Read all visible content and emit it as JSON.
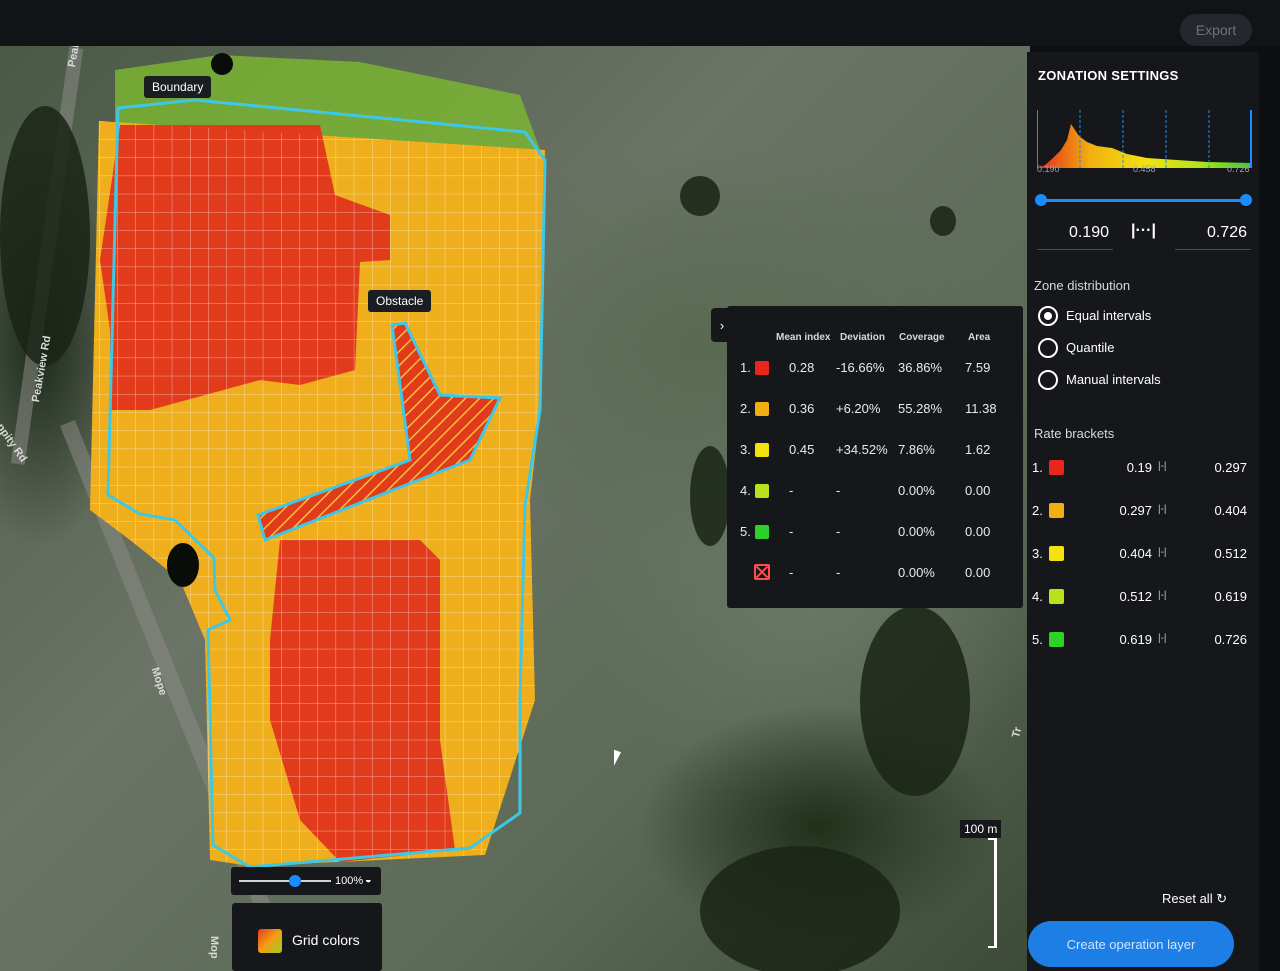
{
  "topbar": {
    "export_label": "Export"
  },
  "map": {
    "labels": {
      "boundary": "Boundary",
      "obstacle": "Obstacle"
    },
    "roads": {
      "peakview_rd_top": "Peakview R",
      "peakview_rd": "Peakview Rd",
      "moppity_rd": "oppity Rd",
      "mope": "Mope",
      "mop": "Mop",
      "tr": "Tr"
    },
    "zoom": {
      "value": "100%"
    },
    "grid_colors_label": "Grid colors",
    "scale_label": "100 m",
    "scale_icon": "scale-bar-icon"
  },
  "stats": {
    "headers": [
      "Mean index",
      "Deviation",
      "Coverage",
      "Area"
    ],
    "rows": [
      {
        "num": "1.",
        "color": "#e8261a",
        "mean": "0.28",
        "deviation": "-16.66%",
        "coverage": "36.86%",
        "area": "7.59"
      },
      {
        "num": "2.",
        "color": "#f2b010",
        "mean": "0.36",
        "deviation": "+6.20%",
        "coverage": "55.28%",
        "area": "11.38"
      },
      {
        "num": "3.",
        "color": "#f2e20e",
        "mean": "0.45",
        "deviation": "+34.52%",
        "coverage": "7.86%",
        "area": "1.62"
      },
      {
        "num": "4.",
        "color": "#b8e21a",
        "mean": "-",
        "deviation": "-",
        "coverage": "0.00%",
        "area": "0.00"
      },
      {
        "num": "5.",
        "color": "#2ed12a",
        "mean": "-",
        "deviation": "-",
        "coverage": "0.00%",
        "area": "0.00"
      },
      {
        "num": "",
        "color": "#ff4d4d",
        "mean": "-",
        "deviation": "-",
        "coverage": "0.00%",
        "area": "0.00",
        "icon": "obstacle-x-icon"
      }
    ]
  },
  "settings": {
    "title": "ZONATION SETTINGS",
    "histogram_ticks": [
      "0.190",
      "0.458",
      "0.726"
    ],
    "range_min": "0.190",
    "range_max": "0.726",
    "range_fraction": {
      "min": 0.0,
      "max": 1.0
    },
    "link_icon": "range-link-icon",
    "zone_distribution_label": "Zone distribution",
    "distribution_options": [
      {
        "label": "Equal intervals",
        "selected": true
      },
      {
        "label": "Quantile",
        "selected": false
      },
      {
        "label": "Manual intervals",
        "selected": false
      }
    ],
    "rate_brackets_label": "Rate brackets",
    "brackets": [
      {
        "num": "1.",
        "color": "#e8261a",
        "lo": "0.19",
        "hi": "0.297"
      },
      {
        "num": "2.",
        "color": "#f2b010",
        "lo": "0.297",
        "hi": "0.404"
      },
      {
        "num": "3.",
        "color": "#f2e20e",
        "lo": "0.404",
        "hi": "0.512"
      },
      {
        "num": "4.",
        "color": "#b8e21a",
        "lo": "0.512",
        "hi": "0.619"
      },
      {
        "num": "5.",
        "color": "#2ed12a",
        "lo": "0.619",
        "hi": "0.726"
      }
    ],
    "reset_label": "Reset all",
    "reset_icon": "reset-icon",
    "create_label": "Create operation layer"
  },
  "colors": {
    "accent": "#1d7fe6",
    "boundary": "#3cc8e6"
  }
}
